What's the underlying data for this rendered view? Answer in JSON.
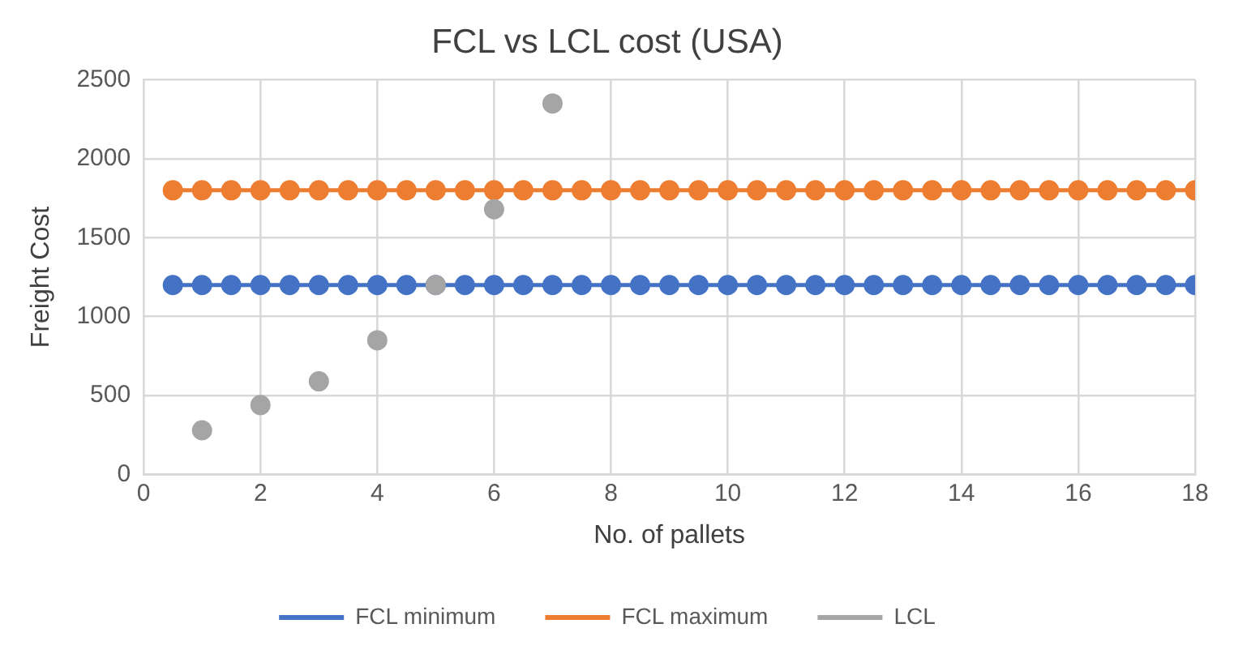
{
  "chart_data": {
    "type": "line",
    "title": "FCL vs LCL cost (USA)",
    "xlabel": "No. of pallets",
    "ylabel": "Freight Cost",
    "xlim": [
      0,
      18
    ],
    "xticks": [
      0,
      2,
      4,
      6,
      8,
      10,
      12,
      14,
      16,
      18
    ],
    "ylim": [
      0,
      2500
    ],
    "yticks": [
      0,
      500,
      1000,
      1500,
      2000,
      2500
    ],
    "grid": true,
    "legend": "bottom",
    "marker": "circle",
    "series": [
      {
        "name": "FCL minimum",
        "color": "#4472c4",
        "x": [
          0.5,
          1,
          1.5,
          2,
          2.5,
          3,
          3.5,
          4,
          4.5,
          5,
          5.5,
          6,
          6.5,
          7,
          7.5,
          8,
          8.5,
          9,
          9.5,
          10,
          10.5,
          11,
          11.5,
          12,
          12.5,
          13,
          13.5,
          14,
          14.5,
          15,
          15.5,
          16,
          16.5,
          17,
          17.5,
          18
        ],
        "values": [
          1200,
          1200,
          1200,
          1200,
          1200,
          1200,
          1200,
          1200,
          1200,
          1200,
          1200,
          1200,
          1200,
          1200,
          1200,
          1200,
          1200,
          1200,
          1200,
          1200,
          1200,
          1200,
          1200,
          1200,
          1200,
          1200,
          1200,
          1200,
          1200,
          1200,
          1200,
          1200,
          1200,
          1200,
          1200,
          1200
        ]
      },
      {
        "name": "FCL maximum",
        "color": "#ed7d31",
        "x": [
          0.5,
          1,
          1.5,
          2,
          2.5,
          3,
          3.5,
          4,
          4.5,
          5,
          5.5,
          6,
          6.5,
          7,
          7.5,
          8,
          8.5,
          9,
          9.5,
          10,
          10.5,
          11,
          11.5,
          12,
          12.5,
          13,
          13.5,
          14,
          14.5,
          15,
          15.5,
          16,
          16.5,
          17,
          17.5,
          18
        ],
        "values": [
          1800,
          1800,
          1800,
          1800,
          1800,
          1800,
          1800,
          1800,
          1800,
          1800,
          1800,
          1800,
          1800,
          1800,
          1800,
          1800,
          1800,
          1800,
          1800,
          1800,
          1800,
          1800,
          1800,
          1800,
          1800,
          1800,
          1800,
          1800,
          1800,
          1800,
          1800,
          1800,
          1800,
          1800,
          1800,
          1800
        ]
      },
      {
        "name": "LCL",
        "type": "scatter",
        "color": "#a5a5a5",
        "x": [
          1,
          2,
          3,
          4,
          5,
          6,
          7
        ],
        "values": [
          280,
          440,
          590,
          850,
          1200,
          1680,
          2350
        ]
      }
    ]
  }
}
